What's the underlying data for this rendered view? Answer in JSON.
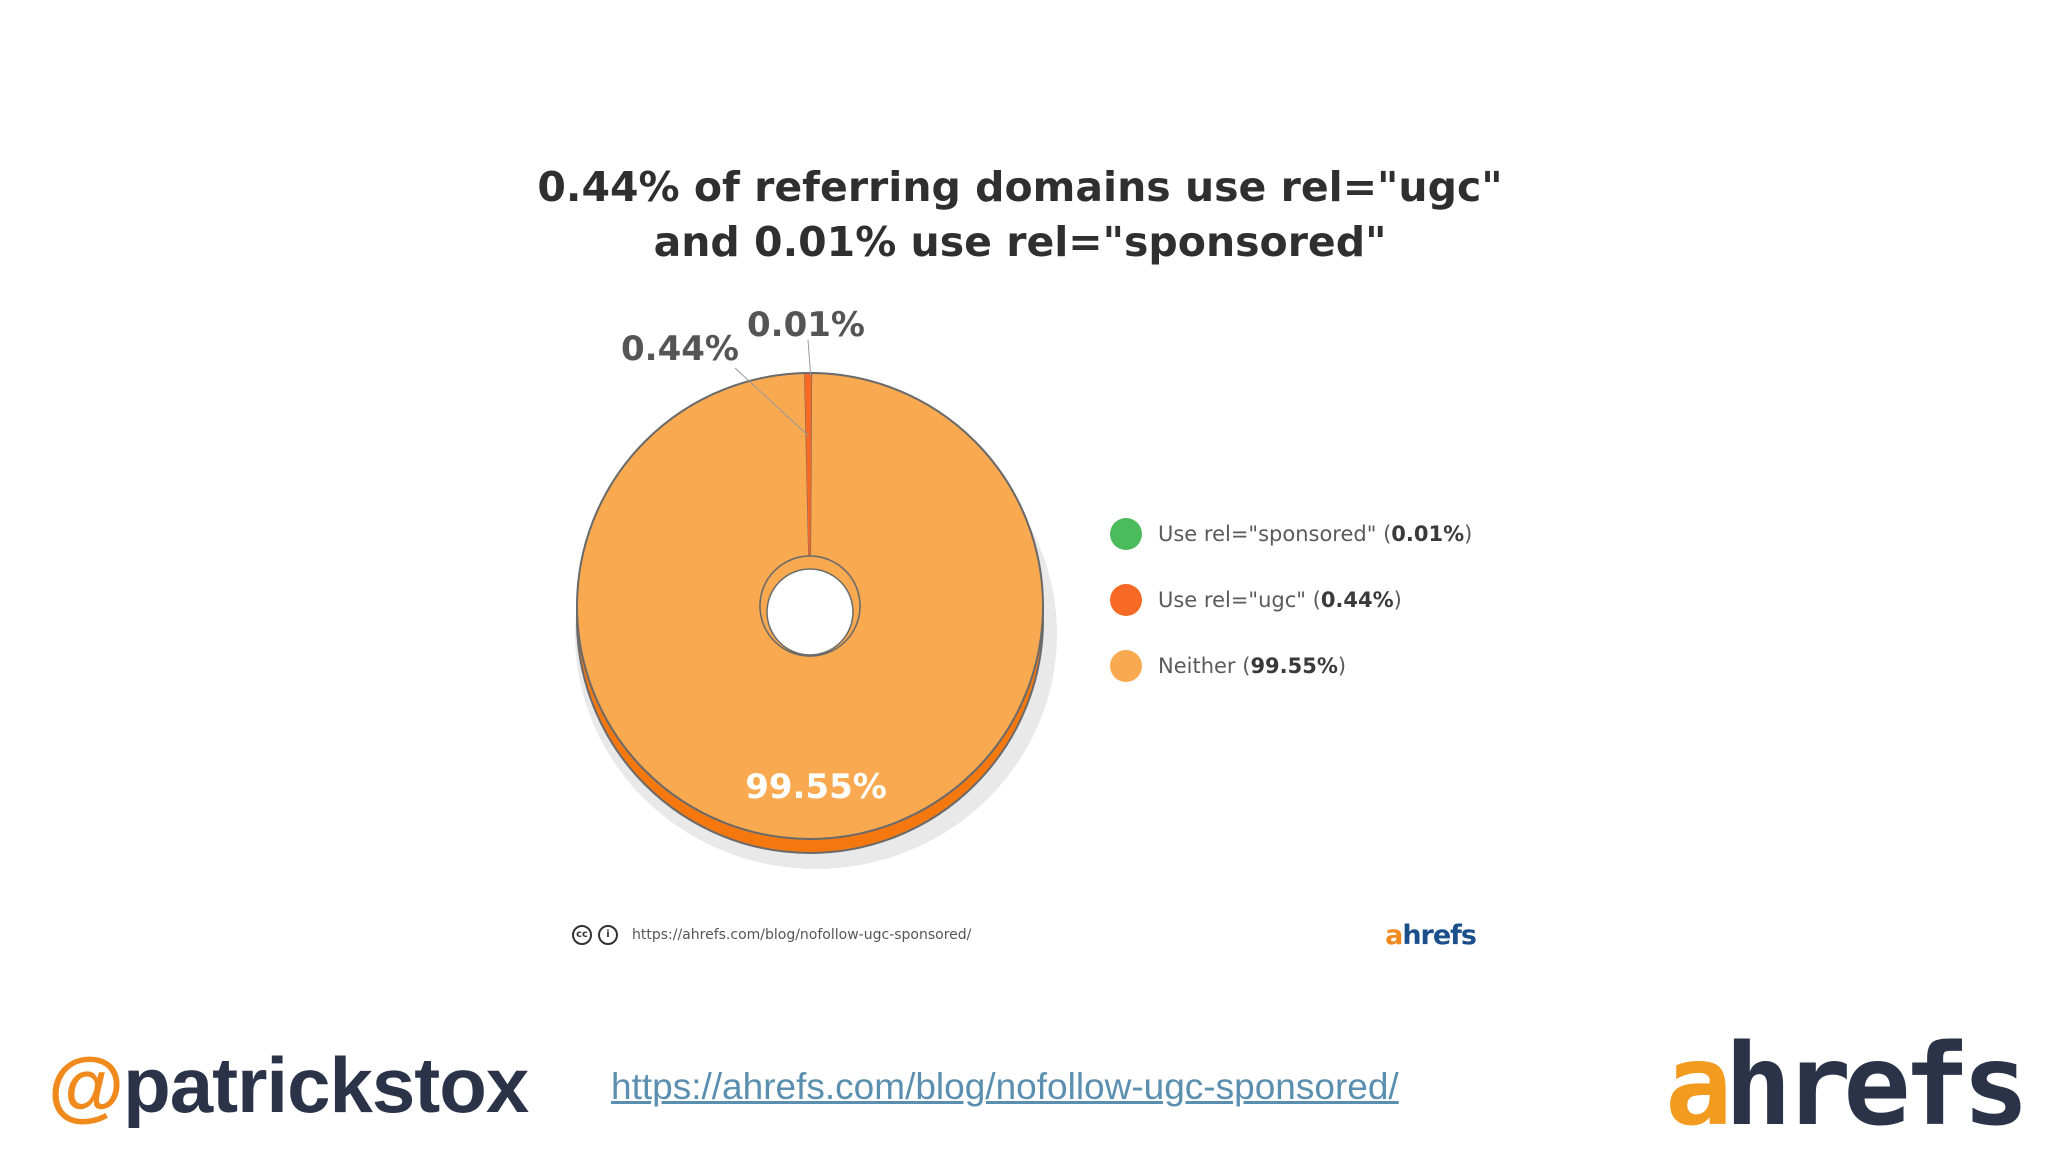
{
  "chart_data": {
    "type": "pie",
    "title_lines": [
      "0.44% of referring domains use rel=\"ugc\"",
      "and 0.01% use rel=\"sponsored\""
    ],
    "slices": [
      {
        "name": "Use rel=\"sponsored\"",
        "value": 0.01,
        "label": "0.01%",
        "color": "#4cbb5b"
      },
      {
        "name": "Use rel=\"ugc\"",
        "value": 0.44,
        "label": "0.44%",
        "color": "#f66a26"
      },
      {
        "name": "Neither",
        "value": 99.55,
        "label": "99.55%",
        "color": "#f9a94f"
      }
    ],
    "legend": [
      {
        "text": "Use rel=\"sponsored\" (",
        "value": "0.01%",
        "close": ")",
        "color": "#4cbb5b"
      },
      {
        "text": "Use rel=\"ugc\" (",
        "value": "0.44%",
        "close": ")",
        "color": "#f66a26"
      },
      {
        "text": "Neither (",
        "value": "99.55%",
        "close": ")",
        "color": "#f9a94f"
      }
    ],
    "legend_placement": "right",
    "donut": true
  },
  "credit": {
    "cc_icon": "creative-commons-icon",
    "by_icon": "attribution-icon",
    "cc_glyph": "cc",
    "by_glyph": "i",
    "url": "https://ahrefs.com/blog/nofollow-ugc-sponsored/"
  },
  "chart_logo": {
    "a": "a",
    "rest": "hrefs"
  },
  "footer": {
    "handle_at": "@",
    "handle_name": "patrickstox",
    "link": "https://ahrefs.com/blog/nofollow-ugc-sponsored/",
    "logo_a": "a",
    "logo_rest": "hrefs"
  },
  "colors": {
    "brand_orange": "#f08a1d",
    "brand_navy": "#2b3349",
    "link_blue": "#5b8fb0"
  }
}
